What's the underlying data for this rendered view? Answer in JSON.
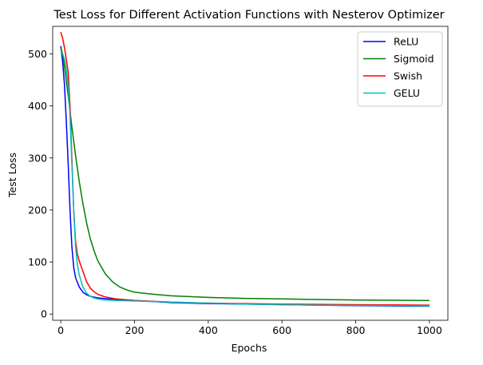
{
  "chart_data": {
    "type": "line",
    "title": "Test Loss for Different Activation Functions with Nesterov Optimizer",
    "xlabel": "Epochs",
    "ylabel": "Test Loss",
    "xlim": [
      -22,
      1050
    ],
    "ylim": [
      -12,
      553
    ],
    "xticks": [
      0,
      200,
      400,
      600,
      800,
      1000
    ],
    "yticks": [
      0,
      100,
      200,
      300,
      400,
      500
    ],
    "grid": false,
    "legend_position": "top-right",
    "series": [
      {
        "name": "ReLU",
        "color": "#0000ff",
        "x": [
          0,
          5,
          10,
          15,
          20,
          25,
          30,
          35,
          40,
          50,
          60,
          70,
          80,
          100,
          130,
          160,
          200,
          300,
          400,
          500,
          600,
          700,
          800,
          900,
          1000
        ],
        "y": [
          515,
          485,
          440,
          370,
          290,
          200,
          130,
          90,
          70,
          52,
          42,
          37,
          34,
          31,
          29,
          28,
          26,
          22,
          20,
          19,
          18,
          17,
          16,
          15.5,
          15
        ]
      },
      {
        "name": "Sigmoid",
        "color": "#008000",
        "x": [
          0,
          5,
          10,
          20,
          30,
          40,
          50,
          60,
          70,
          80,
          90,
          100,
          120,
          140,
          160,
          180,
          200,
          250,
          300,
          400,
          500,
          600,
          700,
          800,
          900,
          1000
        ],
        "y": [
          512,
          500,
          475,
          420,
          360,
          305,
          255,
          212,
          175,
          145,
          122,
          103,
          78,
          62,
          52,
          46,
          42,
          38,
          35,
          32,
          30,
          29,
          28,
          27,
          26.5,
          26
        ]
      },
      {
        "name": "Swish",
        "color": "#ff0000",
        "x": [
          0,
          5,
          10,
          15,
          20,
          25,
          30,
          35,
          40,
          45,
          50,
          60,
          70,
          80,
          90,
          100,
          120,
          150,
          200,
          300,
          400,
          500,
          600,
          700,
          800,
          900,
          1000
        ],
        "y": [
          542,
          530,
          512,
          490,
          465,
          400,
          300,
          200,
          140,
          115,
          102,
          82,
          62,
          50,
          43,
          38,
          33,
          29,
          26,
          23,
          21,
          20,
          19,
          18.5,
          18,
          17.5,
          17
        ]
      },
      {
        "name": "GELU",
        "color": "#00bfbf",
        "x": [
          0,
          5,
          10,
          15,
          20,
          25,
          30,
          35,
          40,
          45,
          50,
          60,
          70,
          80,
          90,
          100,
          120,
          150,
          200,
          300,
          400,
          500,
          600,
          700,
          800,
          900,
          1000
        ],
        "y": [
          505,
          500,
          490,
          470,
          440,
          380,
          290,
          200,
          130,
          95,
          75,
          52,
          40,
          34,
          31,
          29,
          27,
          26,
          25,
          23,
          21,
          19,
          18,
          17,
          16.5,
          16,
          15.5
        ]
      }
    ]
  }
}
